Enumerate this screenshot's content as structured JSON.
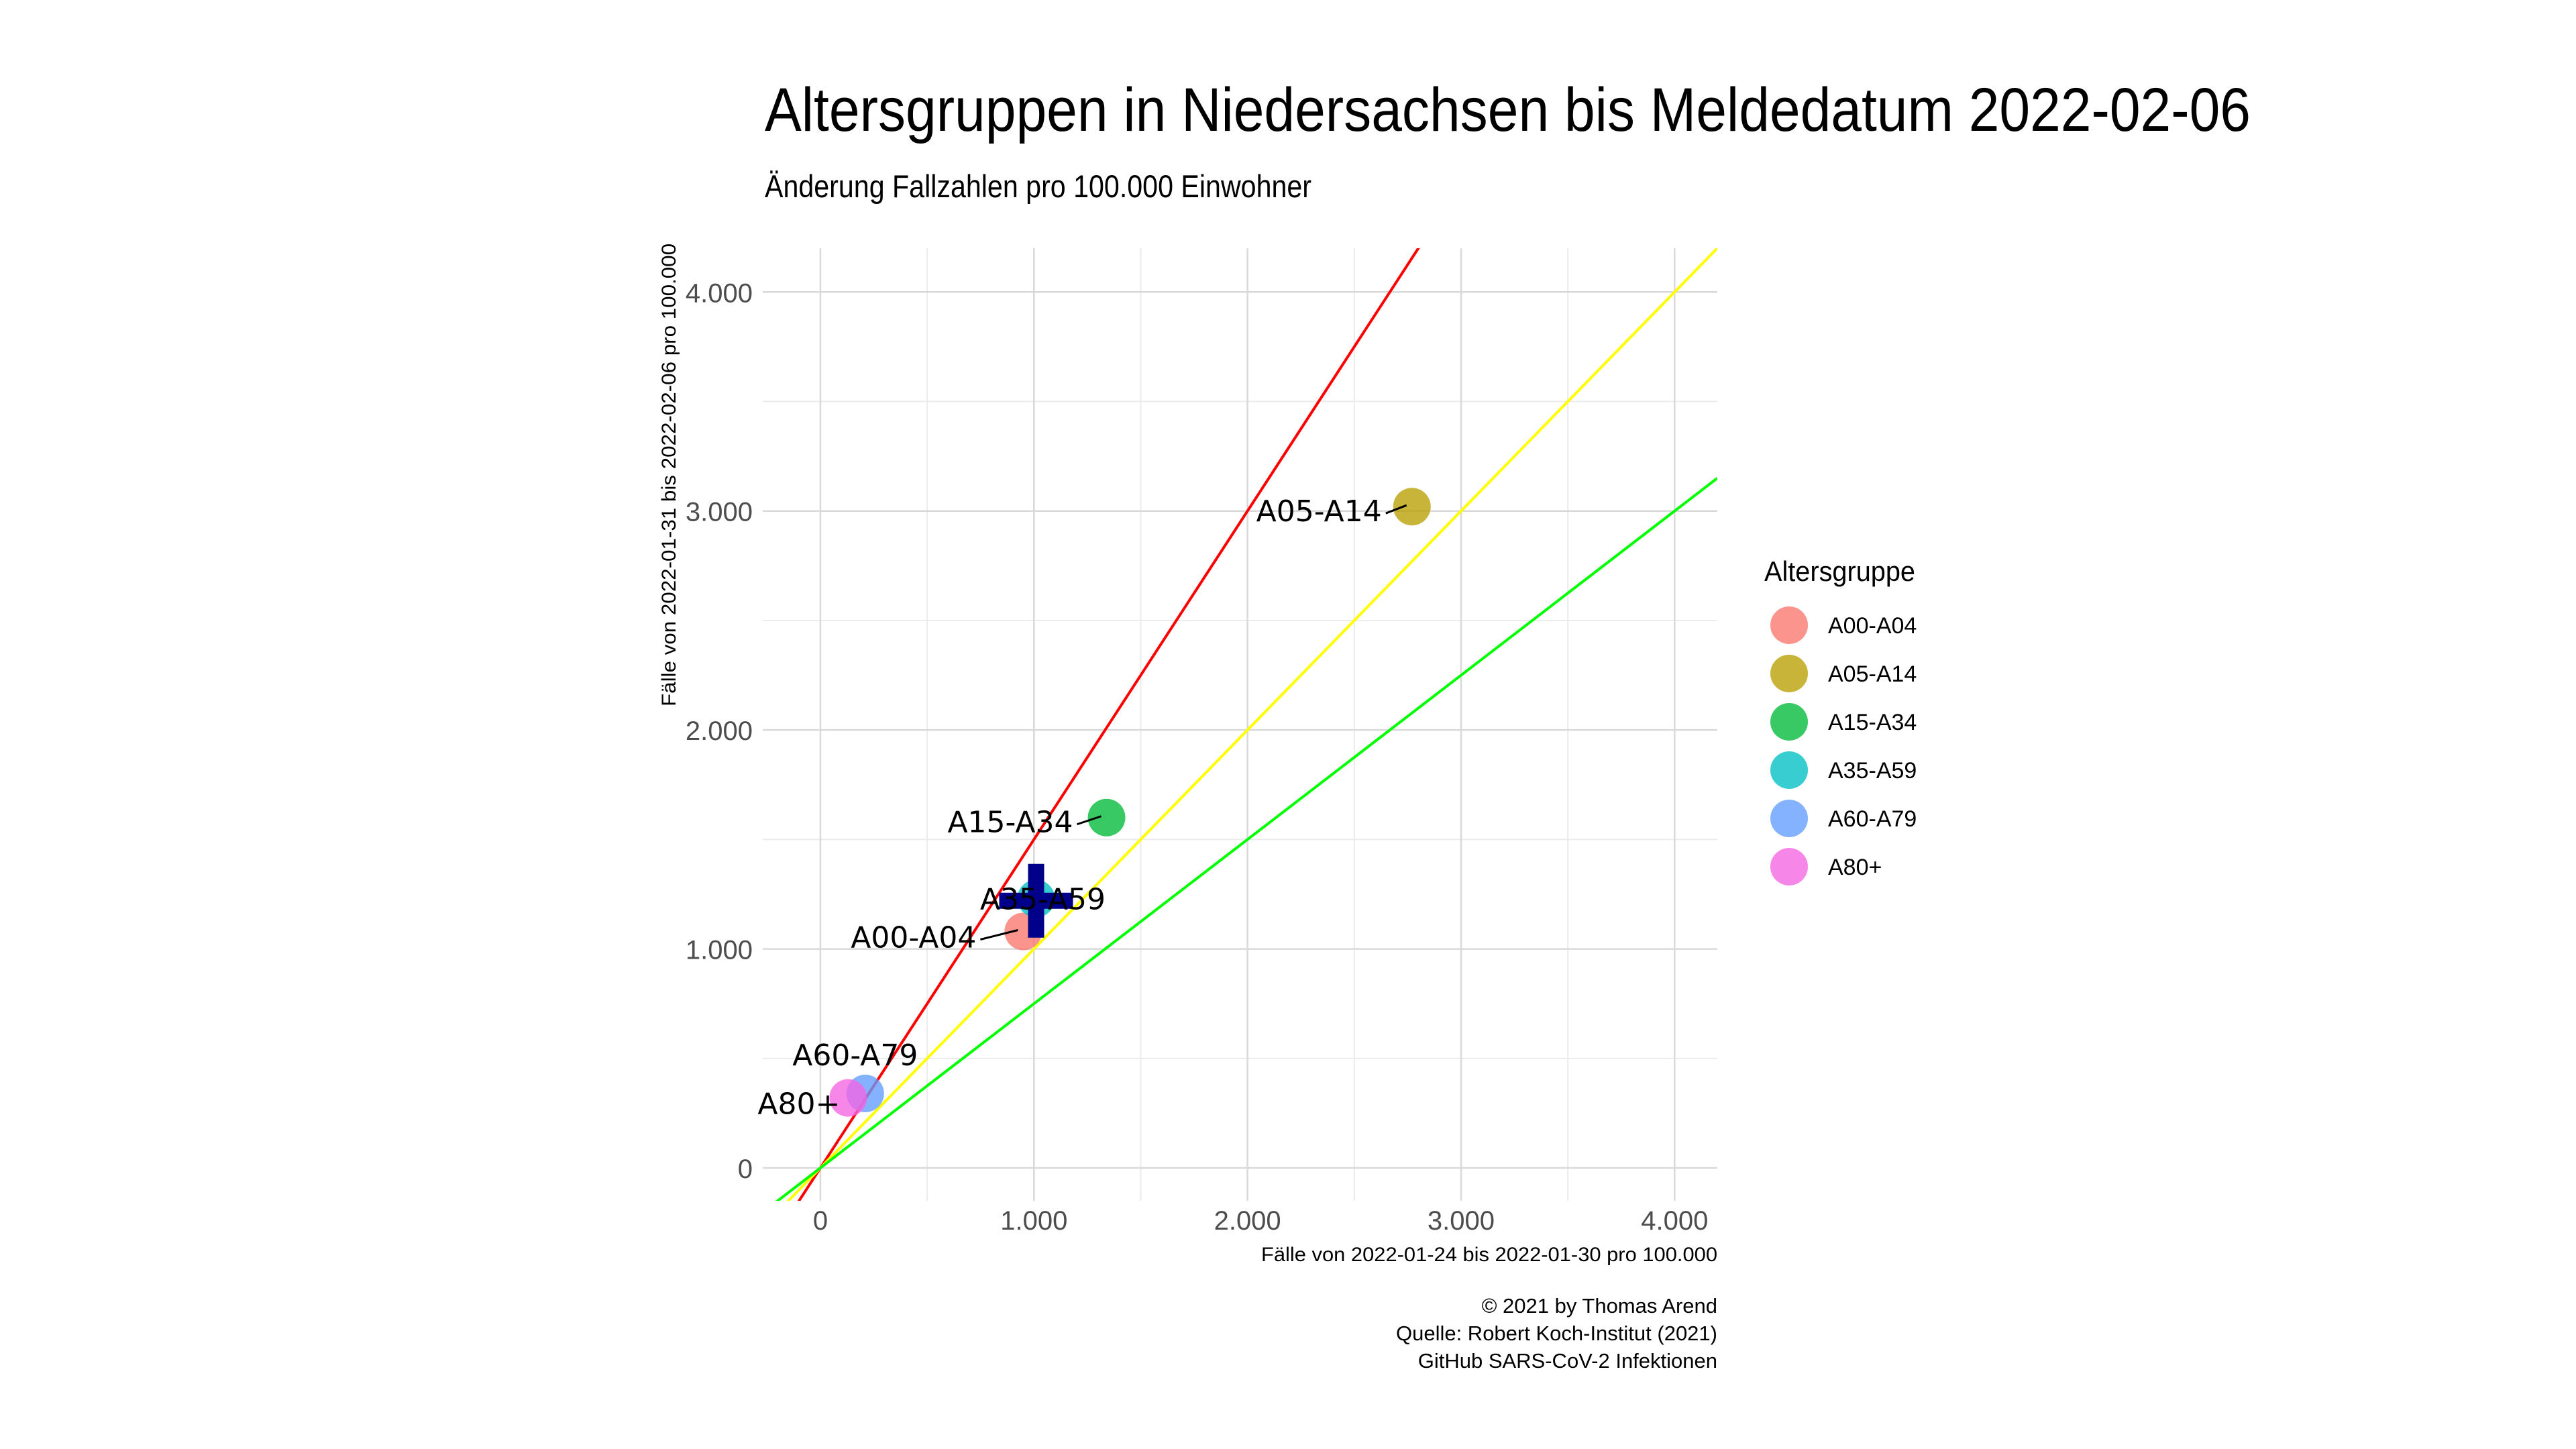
{
  "chart_data": {
    "type": "scatter",
    "title": "Altersgruppen in Niedersachsen bis Meldedatum 2022-02-06",
    "subtitle": "Änderung Fallzahlen pro 100.000 Einwohner",
    "xlabel": "Fälle von 2022-01-24 bis 2022-01-30 pro 100.000",
    "ylabel": "Fälle von 2022-01-31 bis 2022-02-06 pro 100.000",
    "xlim": [
      -270,
      4200
    ],
    "ylim": [
      -150,
      4200
    ],
    "grid": true,
    "x_ticks": [
      {
        "value": 0,
        "label": "0"
      },
      {
        "value": 1000,
        "label": "1.000"
      },
      {
        "value": 2000,
        "label": "2.000"
      },
      {
        "value": 3000,
        "label": "3.000"
      },
      {
        "value": 4000,
        "label": "4.000"
      }
    ],
    "y_ticks": [
      {
        "value": 0,
        "label": "0"
      },
      {
        "value": 1000,
        "label": "1.000"
      },
      {
        "value": 2000,
        "label": "2.000"
      },
      {
        "value": 3000,
        "label": "3.000"
      },
      {
        "value": 4000,
        "label": "4.000"
      }
    ],
    "reference_lines": [
      {
        "slope": 1.5,
        "color": "#ff0000"
      },
      {
        "slope": 1.0,
        "color": "#ffff00"
      },
      {
        "slope": 0.75,
        "color": "#00ff00"
      }
    ],
    "series": [
      {
        "name": "A00-A04",
        "x": 950,
        "y": 1080,
        "color": "#F8766D"
      },
      {
        "name": "A05-A14",
        "x": 2770,
        "y": 3020,
        "color": "#B79F00"
      },
      {
        "name": "A15-A34",
        "x": 1340,
        "y": 1600,
        "color": "#00BA38"
      },
      {
        "name": "A35-A59",
        "x": 1010,
        "y": 1230,
        "color": "#00BFC4"
      },
      {
        "name": "A60-A79",
        "x": 210,
        "y": 340,
        "color": "#619CFF"
      },
      {
        "name": "A80+",
        "x": 130,
        "y": 320,
        "color": "#F564E3"
      }
    ],
    "mean_marker": {
      "x": 1010,
      "y": 1220,
      "color": "#00008B"
    },
    "legend": {
      "title": "Altersgruppe",
      "position": "right"
    },
    "caption": [
      "© 2021 by Thomas Arend",
      "Quelle: Robert Koch-Institut (2021)",
      "GitHub SARS-CoV-2 Infektionen"
    ]
  }
}
